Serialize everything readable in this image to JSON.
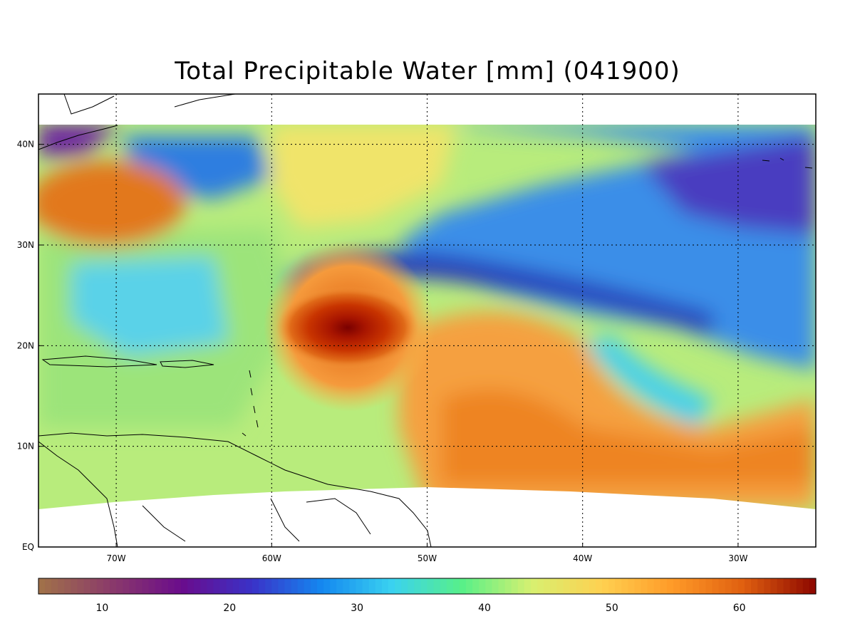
{
  "title": "Total Precipitable Water [mm]  (041900)",
  "map": {
    "lon_range": [
      -75,
      -25
    ],
    "lat_range": [
      0,
      45
    ],
    "x_ticks": [
      {
        "lon": -70,
        "label": "70W"
      },
      {
        "lon": -60,
        "label": "60W"
      },
      {
        "lon": -50,
        "label": "50W"
      },
      {
        "lon": -40,
        "label": "40W"
      },
      {
        "lon": -30,
        "label": "30W"
      }
    ],
    "y_ticks": [
      {
        "lat": 0,
        "label": "EQ"
      },
      {
        "lat": 10,
        "label": "10N"
      },
      {
        "lat": 20,
        "label": "20N"
      },
      {
        "lat": 30,
        "label": "30N"
      },
      {
        "lat": 40,
        "label": "40N"
      }
    ],
    "grid": "dotted",
    "data_lat_range": [
      4,
      42
    ],
    "features": [
      {
        "name": "hurricane-center",
        "lon": -55,
        "lat": 21,
        "value_mm": 65
      },
      {
        "name": "dry-band",
        "value_mm": 22
      },
      {
        "name": "moist-tropical-plume",
        "value_mm": 57
      }
    ]
  },
  "colorbar": {
    "range": [
      5,
      66
    ],
    "tick_values": [
      10,
      20,
      30,
      40,
      50,
      60
    ],
    "tick_labels": [
      "10",
      "20",
      "30",
      "40",
      "50",
      "60"
    ],
    "colors": [
      "#a0704a",
      "#8a3a6a",
      "#6a0c8c",
      "#3a32c8",
      "#1488f0",
      "#3ad2f0",
      "#58f088",
      "#d8f070",
      "#ffd050",
      "#ff9a28",
      "#e06010",
      "#900a00"
    ]
  }
}
